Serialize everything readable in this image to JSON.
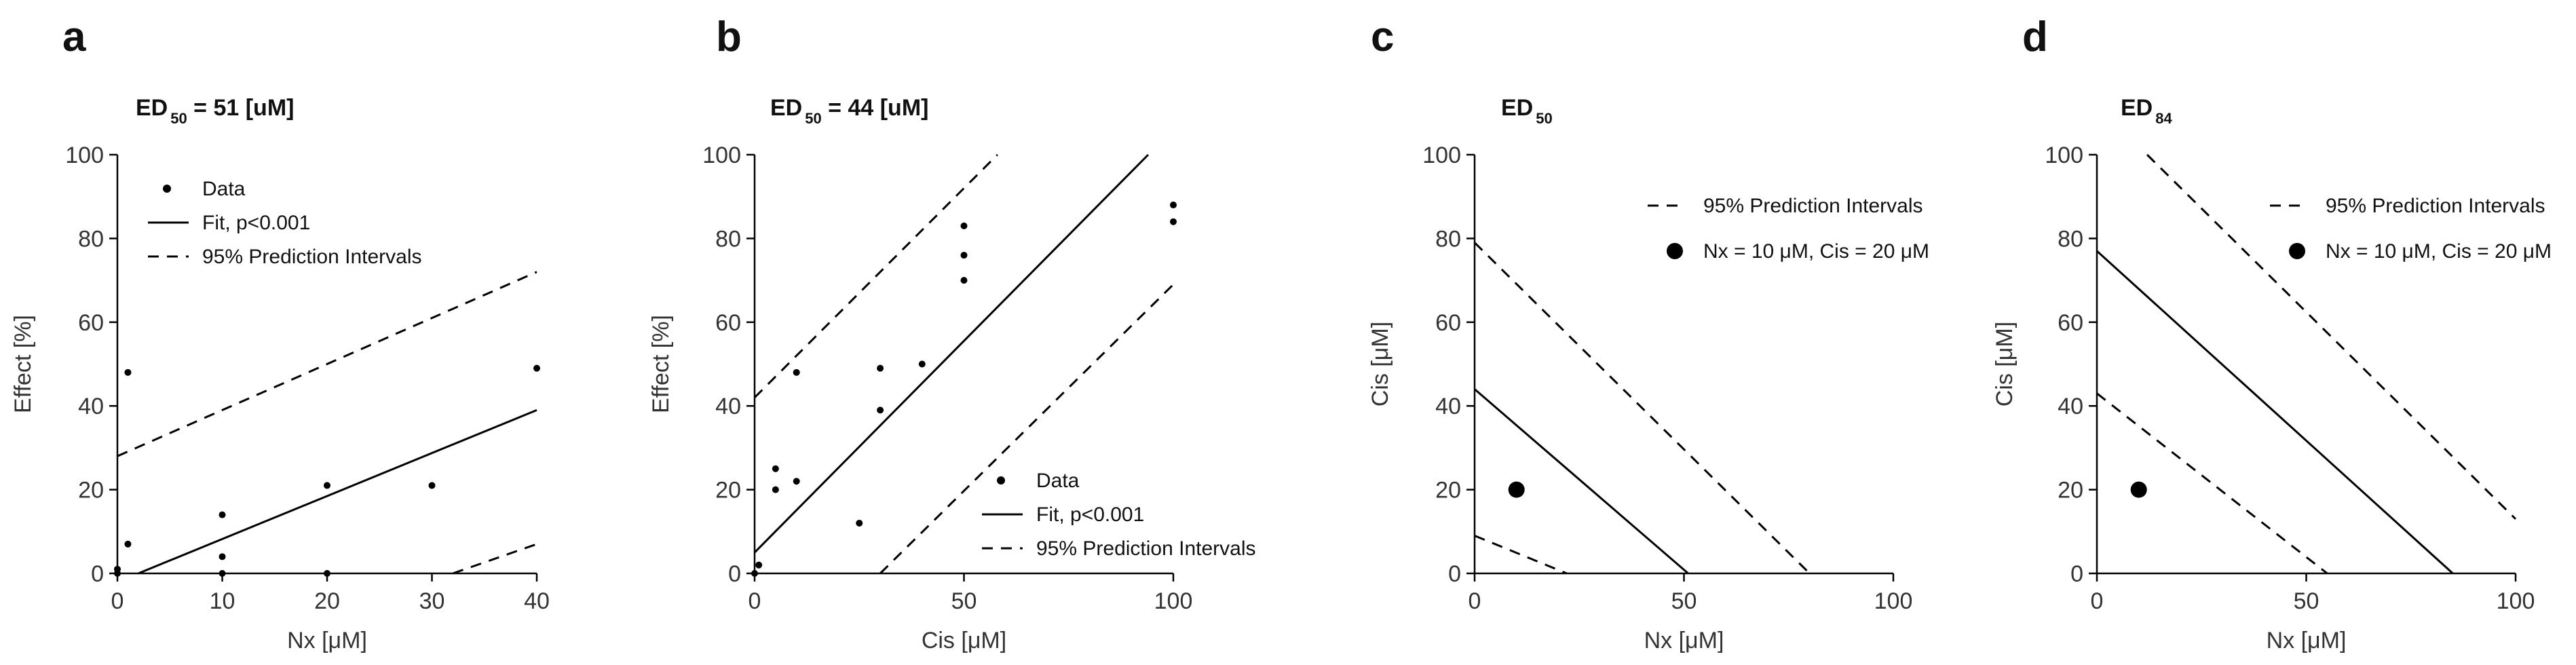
{
  "chart_data": [
    {
      "panel": "a",
      "type": "scatter",
      "title": "ED",
      "title_subscript": "50",
      "title_suffix": " = 51 [uM]",
      "xlabel": "Nx [μM]",
      "ylabel": "Effect [%]",
      "xlim": [
        0,
        40
      ],
      "ylim": [
        0,
        100
      ],
      "xticks": [
        "0",
        "10",
        "20",
        "30",
        "40"
      ],
      "yticks": [
        "0",
        "20",
        "40",
        "60",
        "80",
        "100"
      ],
      "legend": [
        "Data",
        "Fit, p<0.001",
        "95% Prediction Intervals"
      ],
      "legend_position": "top-left",
      "points": [
        [
          0,
          0
        ],
        [
          0,
          1
        ],
        [
          1,
          48
        ],
        [
          1,
          7
        ],
        [
          10,
          14
        ],
        [
          10,
          4
        ],
        [
          10,
          0
        ],
        [
          20,
          21
        ],
        [
          20,
          0
        ],
        [
          30,
          21
        ],
        [
          40,
          49
        ]
      ],
      "fit": [
        [
          2,
          0
        ],
        [
          40,
          39
        ]
      ],
      "pi_upper": [
        [
          0,
          28
        ],
        [
          40,
          72
        ]
      ],
      "pi_lower": [
        [
          32,
          0
        ],
        [
          40,
          7
        ]
      ]
    },
    {
      "panel": "b",
      "type": "scatter",
      "title": "ED",
      "title_subscript": "50",
      "title_suffix": " = 44 [uM]",
      "xlabel": "Cis [μM]",
      "ylabel": "Effect [%]",
      "xlim": [
        0,
        100
      ],
      "ylim": [
        0,
        100
      ],
      "xticks": [
        "0",
        "50",
        "100"
      ],
      "yticks": [
        "0",
        "20",
        "40",
        "60",
        "80",
        "100"
      ],
      "legend": [
        "Data",
        "Fit, p<0.001",
        "95% Prediction Intervals"
      ],
      "legend_position": "bottom-right",
      "points": [
        [
          0,
          0
        ],
        [
          1,
          2
        ],
        [
          5,
          25
        ],
        [
          5,
          20
        ],
        [
          10,
          48
        ],
        [
          10,
          22
        ],
        [
          25,
          12
        ],
        [
          30,
          49
        ],
        [
          30,
          39
        ],
        [
          40,
          50
        ],
        [
          50,
          83
        ],
        [
          50,
          76
        ],
        [
          50,
          70
        ],
        [
          100,
          88
        ],
        [
          100,
          84
        ]
      ],
      "fit": [
        [
          0,
          5
        ],
        [
          94,
          100
        ]
      ],
      "pi_upper": [
        [
          0,
          42
        ],
        [
          58,
          100
        ]
      ],
      "pi_lower": [
        [
          30,
          0
        ],
        [
          100,
          69
        ]
      ]
    },
    {
      "panel": "c",
      "type": "line",
      "title": "ED",
      "title_subscript": "50",
      "title_suffix": "",
      "xlabel": "Nx [μM]",
      "ylabel": "Cis [μM]",
      "xlim": [
        0,
        100
      ],
      "ylim": [
        0,
        100
      ],
      "xticks": [
        "0",
        "50",
        "100"
      ],
      "yticks": [
        "0",
        "20",
        "40",
        "60",
        "80",
        "100"
      ],
      "legend": [
        "95% Prediction Intervals",
        "Nx = 10 μM, Cis = 20 μM"
      ],
      "legend_position": "top-right",
      "point": [
        10,
        20
      ],
      "fit": [
        [
          0,
          44
        ],
        [
          51,
          0
        ]
      ],
      "pi_upper": [
        [
          0,
          79
        ],
        [
          80,
          0
        ]
      ],
      "pi_lower": [
        [
          0,
          9
        ],
        [
          22,
          0
        ]
      ]
    },
    {
      "panel": "d",
      "type": "line",
      "title": "ED",
      "title_subscript": "84",
      "title_suffix": "",
      "xlabel": "Nx [μM]",
      "ylabel": "Cis [μM]",
      "xlim": [
        0,
        100
      ],
      "ylim": [
        0,
        100
      ],
      "xticks": [
        "0",
        "50",
        "100"
      ],
      "yticks": [
        "0",
        "20",
        "40",
        "60",
        "80",
        "100"
      ],
      "legend": [
        "95% Prediction Intervals",
        "Nx = 10 μM, Cis = 20 μM"
      ],
      "legend_position": "top-right",
      "point": [
        10,
        20
      ],
      "fit": [
        [
          0,
          77
        ],
        [
          85,
          0
        ]
      ],
      "pi_upper": [
        [
          12,
          100
        ],
        [
          100,
          13
        ]
      ],
      "pi_lower": [
        [
          0,
          43
        ],
        [
          55,
          0
        ]
      ]
    }
  ]
}
